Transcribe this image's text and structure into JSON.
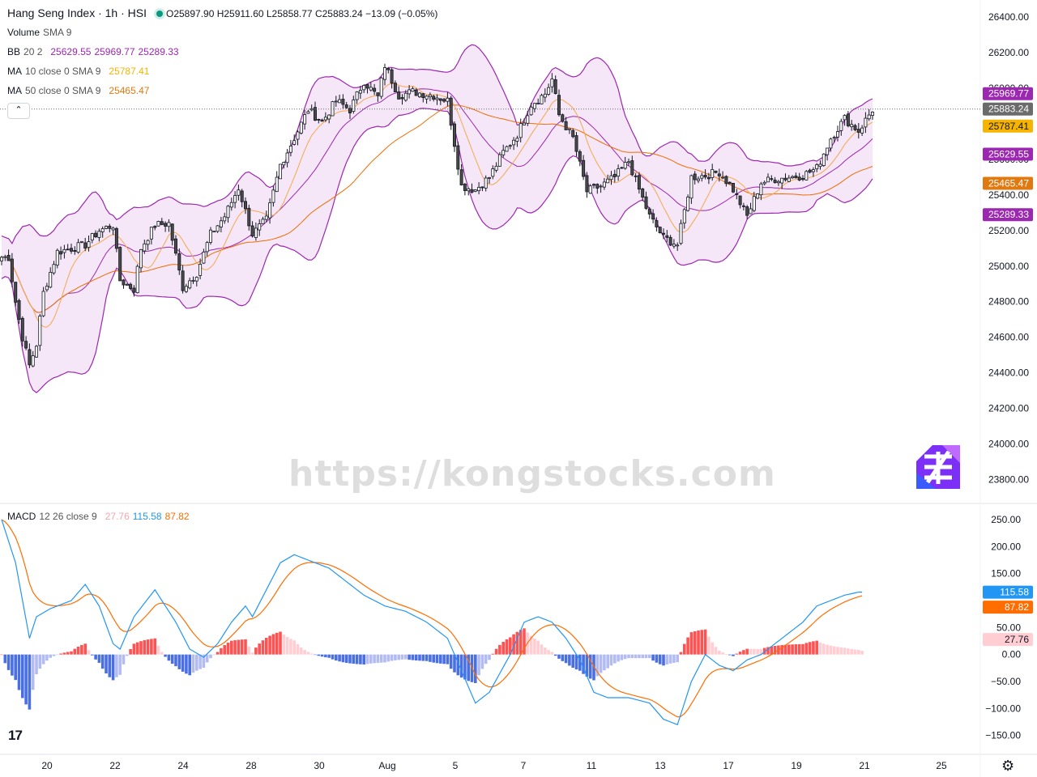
{
  "header": {
    "symbol_title": "Hang Seng Index · 1h · HSI",
    "ohlc": "O25897.90 H25911.60 L25858.77 C25883.24 −13.09 (−0.05%)"
  },
  "indicators": {
    "volume": {
      "name": "Volume",
      "params": "SMA 9"
    },
    "bb": {
      "name": "BB",
      "params": "20 2",
      "values": [
        "25629.55",
        "25969.77",
        "25289.33"
      ]
    },
    "ma10": {
      "name": "MA",
      "params": "10 close 0 SMA 9",
      "value": "25787.41"
    },
    "ma50": {
      "name": "MA",
      "params": "50 close 0 SMA 9",
      "value": "25465.47"
    },
    "macd": {
      "name": "MACD",
      "params": "12 26 close 9",
      "values": [
        "27.76",
        "115.58",
        "87.82"
      ]
    }
  },
  "colors": {
    "up": "#ffffff",
    "down": "#4a4a4a",
    "bb_line": "#9c27b0",
    "bb_fill": "#f3e3f7",
    "ma10": "#f7a74a",
    "ma50": "#ef6c00",
    "macd": "#2196f3",
    "signal": "#ff6d00",
    "hist_pos_strong": "#ff5252",
    "hist_pos_weak": "#ffcdd2",
    "hist_neg_strong": "#4a6fe3",
    "hist_neg_weak": "#b2bcf2",
    "price_badge": "#6b6b6b",
    "ma10_badge": "#f6b300",
    "ma50_badge": "#e07a10",
    "bb_badge": "#9c27b0",
    "macd_badge": "#2196f3",
    "signal_badge": "#ff6d00",
    "hist_badge": "#ffcdd2"
  },
  "watermark": "https://kongstocks.com",
  "icons": {
    "collapse": "chevron-up-icon",
    "settings": "gear-icon",
    "brand": "tradingview-logo-icon"
  },
  "tv_logo_text": "17",
  "collapse_glyph": "⌃",
  "settings_glyph": "⚙",
  "chart_data": {
    "type": "candlestick",
    "price_axis": {
      "ticks": [
        "26400.00",
        "26200.00",
        "26000.00",
        "25800.00",
        "25600.00",
        "25400.00",
        "25200.00",
        "25000.00",
        "24800.00",
        "24600.00",
        "24400.00",
        "24200.00",
        "24000.00",
        "23800.00"
      ],
      "range": [
        23720,
        26460
      ]
    },
    "macd_axis": {
      "ticks": [
        "250.00",
        "200.00",
        "150.00",
        "50.00",
        "0.00",
        "−50.00",
        "−100.00",
        "−150.00"
      ],
      "range": [
        -170,
        265
      ]
    },
    "time_axis": [
      "20",
      "22",
      "24",
      "28",
      "30",
      "Aug",
      "5",
      "7",
      "11",
      "13",
      "17",
      "19",
      "21",
      "25"
    ],
    "last_values": {
      "close": "25883.24",
      "bb_upper": "25969.77",
      "bb_basis": "25629.55",
      "bb_lower": "25289.33",
      "ma10": "25787.41",
      "ma50": "25465.47",
      "macd": "115.58",
      "signal": "87.82",
      "hist": "27.76"
    },
    "close_anchors": [
      [
        0,
        25050
      ],
      [
        2,
        25050
      ],
      [
        4,
        24800
      ],
      [
        6,
        24600
      ],
      [
        8,
        24440
      ],
      [
        10,
        24560
      ],
      [
        12,
        24850
      ],
      [
        16,
        25080
      ],
      [
        20,
        25100
      ],
      [
        24,
        25120
      ],
      [
        28,
        25200
      ],
      [
        32,
        25230
      ],
      [
        34,
        24920
      ],
      [
        38,
        24870
      ],
      [
        40,
        25100
      ],
      [
        44,
        25230
      ],
      [
        48,
        25240
      ],
      [
        52,
        24880
      ],
      [
        56,
        24960
      ],
      [
        60,
        25180
      ],
      [
        64,
        25280
      ],
      [
        68,
        25440
      ],
      [
        72,
        25180
      ],
      [
        76,
        25260
      ],
      [
        80,
        25570
      ],
      [
        84,
        25720
      ],
      [
        88,
        25880
      ],
      [
        92,
        25810
      ],
      [
        96,
        25930
      ],
      [
        100,
        25880
      ],
      [
        104,
        26040
      ],
      [
        108,
        25950
      ],
      [
        110,
        26130
      ],
      [
        114,
        25960
      ],
      [
        118,
        25980
      ],
      [
        124,
        25960
      ],
      [
        128,
        25930
      ],
      [
        132,
        25450
      ],
      [
        136,
        25430
      ],
      [
        140,
        25500
      ],
      [
        144,
        25640
      ],
      [
        148,
        25740
      ],
      [
        152,
        25910
      ],
      [
        156,
        25970
      ],
      [
        158,
        26050
      ],
      [
        160,
        25850
      ],
      [
        164,
        25720
      ],
      [
        168,
        25420
      ],
      [
        172,
        25450
      ],
      [
        176,
        25500
      ],
      [
        180,
        25590
      ],
      [
        182,
        25480
      ],
      [
        186,
        25280
      ],
      [
        190,
        25160
      ],
      [
        194,
        25120
      ],
      [
        198,
        25500
      ],
      [
        202,
        25510
      ],
      [
        206,
        25530
      ],
      [
        210,
        25430
      ],
      [
        214,
        25280
      ],
      [
        218,
        25470
      ],
      [
        222,
        25490
      ],
      [
        226,
        25500
      ],
      [
        230,
        25510
      ],
      [
        234,
        25550
      ],
      [
        238,
        25720
      ],
      [
        242,
        25830
      ],
      [
        246,
        25760
      ],
      [
        250,
        25880
      ]
    ],
    "macd_anchors": [
      [
        0,
        250
      ],
      [
        4,
        170
      ],
      [
        8,
        30
      ],
      [
        10,
        70
      ],
      [
        14,
        85
      ],
      [
        20,
        100
      ],
      [
        24,
        130
      ],
      [
        28,
        90
      ],
      [
        32,
        20
      ],
      [
        34,
        10
      ],
      [
        38,
        70
      ],
      [
        44,
        120
      ],
      [
        50,
        60
      ],
      [
        54,
        10
      ],
      [
        58,
        -5
      ],
      [
        62,
        20
      ],
      [
        66,
        60
      ],
      [
        70,
        90
      ],
      [
        72,
        70
      ],
      [
        76,
        120
      ],
      [
        80,
        170
      ],
      [
        84,
        185
      ],
      [
        88,
        175
      ],
      [
        94,
        160
      ],
      [
        100,
        130
      ],
      [
        104,
        110
      ],
      [
        110,
        90
      ],
      [
        116,
        80
      ],
      [
        122,
        60
      ],
      [
        128,
        30
      ],
      [
        132,
        -30
      ],
      [
        136,
        -90
      ],
      [
        140,
        -70
      ],
      [
        146,
        0
      ],
      [
        150,
        60
      ],
      [
        154,
        70
      ],
      [
        158,
        60
      ],
      [
        162,
        30
      ],
      [
        166,
        -10
      ],
      [
        170,
        -70
      ],
      [
        174,
        -80
      ],
      [
        180,
        -80
      ],
      [
        186,
        -90
      ],
      [
        190,
        -120
      ],
      [
        194,
        -130
      ],
      [
        198,
        -50
      ],
      [
        202,
        0
      ],
      [
        206,
        -20
      ],
      [
        210,
        -30
      ],
      [
        214,
        -10
      ],
      [
        218,
        0
      ],
      [
        222,
        20
      ],
      [
        226,
        40
      ],
      [
        230,
        60
      ],
      [
        234,
        90
      ],
      [
        238,
        100
      ],
      [
        242,
        110
      ],
      [
        246,
        115.58
      ]
    ]
  }
}
